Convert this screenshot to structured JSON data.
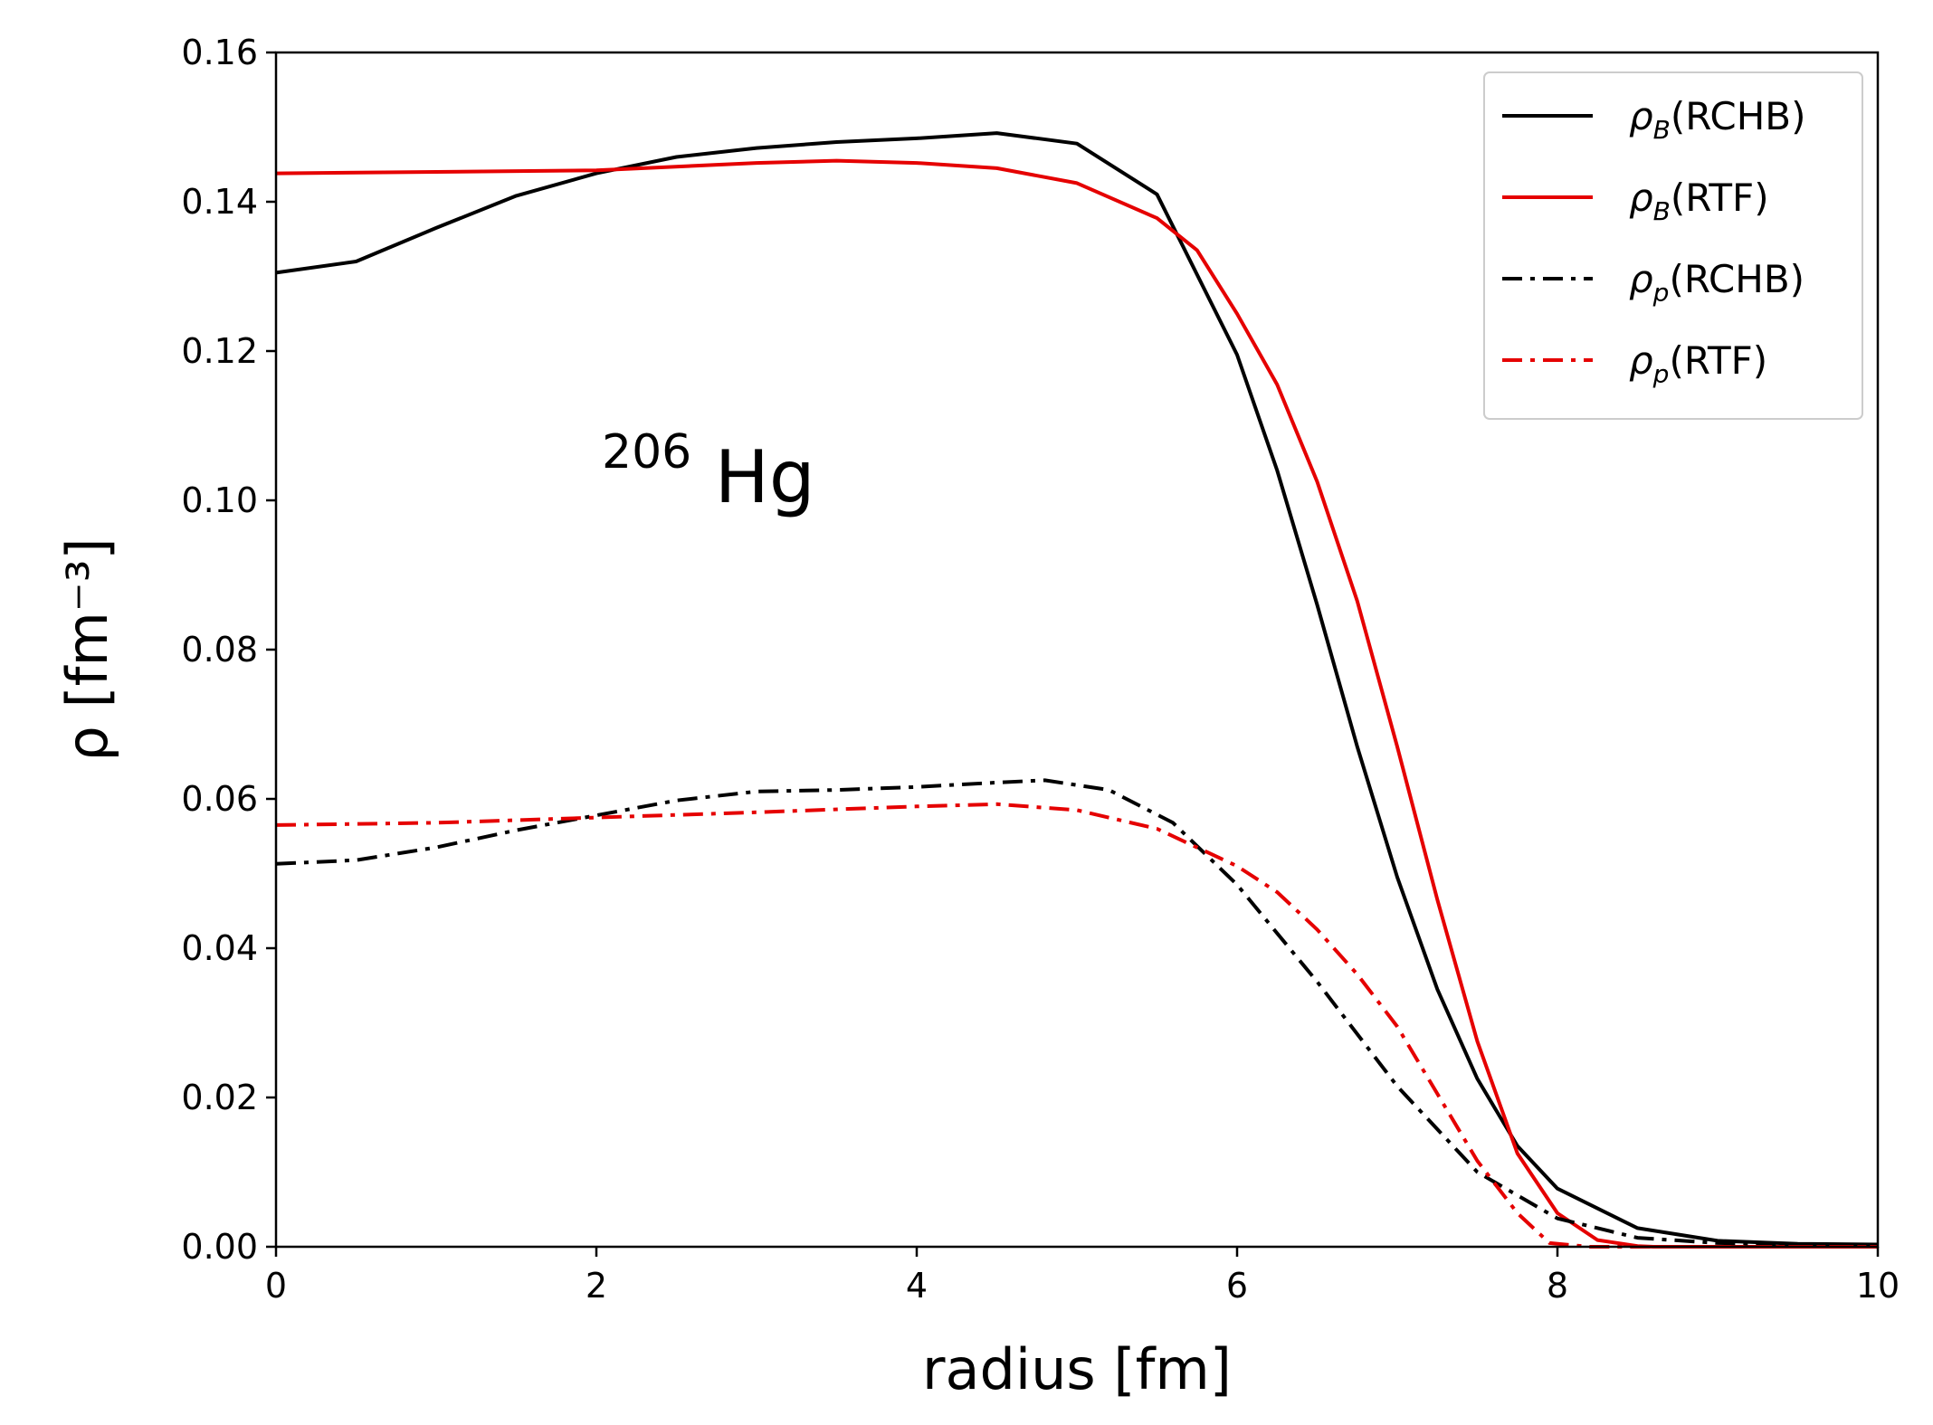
{
  "chart_data": {
    "type": "line",
    "title": "",
    "xlabel": "radius [fm]",
    "ylabel": "ρ [fm⁻³]",
    "xlim": [
      0,
      10
    ],
    "ylim": [
      0,
      0.16
    ],
    "xticks": [
      0,
      2,
      4,
      6,
      8,
      10
    ],
    "xtick_labels": [
      "0",
      "2",
      "4",
      "6",
      "8",
      "10"
    ],
    "yticks": [
      0,
      0.02,
      0.04,
      0.06,
      0.08,
      0.1,
      0.12,
      0.14,
      0.16
    ],
    "ytick_labels": [
      "0.00",
      "0.02",
      "0.04",
      "0.06",
      "0.08",
      "0.10",
      "0.12",
      "0.14",
      "0.16"
    ],
    "grid": false,
    "legend_position": "top-right",
    "annotation": {
      "mass_number": "206",
      "element": "Hg"
    },
    "series": [
      {
        "name": "ρB(RCHB)",
        "symbol": "ρ",
        "subscript": "B",
        "suffix": "(RCHB)",
        "color": "#000000",
        "style": "solid",
        "x": [
          0,
          0.5,
          1,
          1.5,
          2,
          2.5,
          3,
          3.5,
          4,
          4.5,
          5,
          5.5,
          6,
          6.25,
          6.5,
          6.75,
          7,
          7.25,
          7.5,
          7.75,
          8,
          8.5,
          9,
          9.5,
          10
        ],
        "y": [
          0.1305,
          0.132,
          0.1365,
          0.1408,
          0.1438,
          0.146,
          0.1472,
          0.148,
          0.1485,
          0.1492,
          0.1478,
          0.141,
          0.1195,
          0.104,
          0.086,
          0.067,
          0.0495,
          0.0345,
          0.0225,
          0.0135,
          0.0078,
          0.0025,
          0.0008,
          0.0004,
          0.0003
        ]
      },
      {
        "name": "ρB(RTF)",
        "symbol": "ρ",
        "subscript": "B",
        "suffix": "(RTF)",
        "color": "#e50000",
        "style": "solid",
        "x": [
          0,
          1,
          2,
          3,
          3.5,
          4,
          4.5,
          5,
          5.5,
          5.75,
          6,
          6.25,
          6.5,
          6.75,
          7,
          7.25,
          7.5,
          7.75,
          8,
          8.25,
          8.5,
          8.6,
          9,
          10
        ],
        "y": [
          0.1438,
          0.144,
          0.1442,
          0.1452,
          0.1455,
          0.1452,
          0.1445,
          0.1425,
          0.1378,
          0.1335,
          0.125,
          0.1155,
          0.1025,
          0.0865,
          0.067,
          0.0465,
          0.0275,
          0.0125,
          0.0045,
          0.0009,
          0.0001,
          0,
          0,
          0
        ]
      },
      {
        "name": "ρp(RCHB)",
        "symbol": "ρ",
        "subscript": "p",
        "suffix": "(RCHB)",
        "color": "#000000",
        "style": "dashdot",
        "x": [
          0,
          0.5,
          1,
          1.5,
          2,
          2.5,
          3,
          3.5,
          4,
          4.5,
          4.8,
          5.2,
          5.6,
          6,
          6.5,
          7,
          7.5,
          8,
          8.5,
          9,
          9.5,
          10
        ],
        "y": [
          0.0513,
          0.0518,
          0.0535,
          0.0558,
          0.0578,
          0.0598,
          0.061,
          0.0612,
          0.0616,
          0.0622,
          0.0625,
          0.0612,
          0.0568,
          0.0485,
          0.0355,
          0.0215,
          0.01,
          0.0038,
          0.0012,
          0.0005,
          0.0003,
          0.0002
        ]
      },
      {
        "name": "ρp(RTF)",
        "symbol": "ρ",
        "subscript": "p",
        "suffix": "(RTF)",
        "color": "#e50000",
        "style": "dashdot",
        "x": [
          0,
          1,
          2,
          3,
          4,
          4.5,
          5,
          5.5,
          6,
          6.25,
          6.5,
          6.75,
          7,
          7.25,
          7.5,
          7.75,
          7.95,
          8.2,
          10
        ],
        "y": [
          0.0565,
          0.0568,
          0.0575,
          0.0582,
          0.059,
          0.0593,
          0.0585,
          0.056,
          0.051,
          0.0475,
          0.0425,
          0.0365,
          0.0295,
          0.0205,
          0.0115,
          0.0045,
          0.0005,
          0,
          0
        ]
      }
    ]
  }
}
